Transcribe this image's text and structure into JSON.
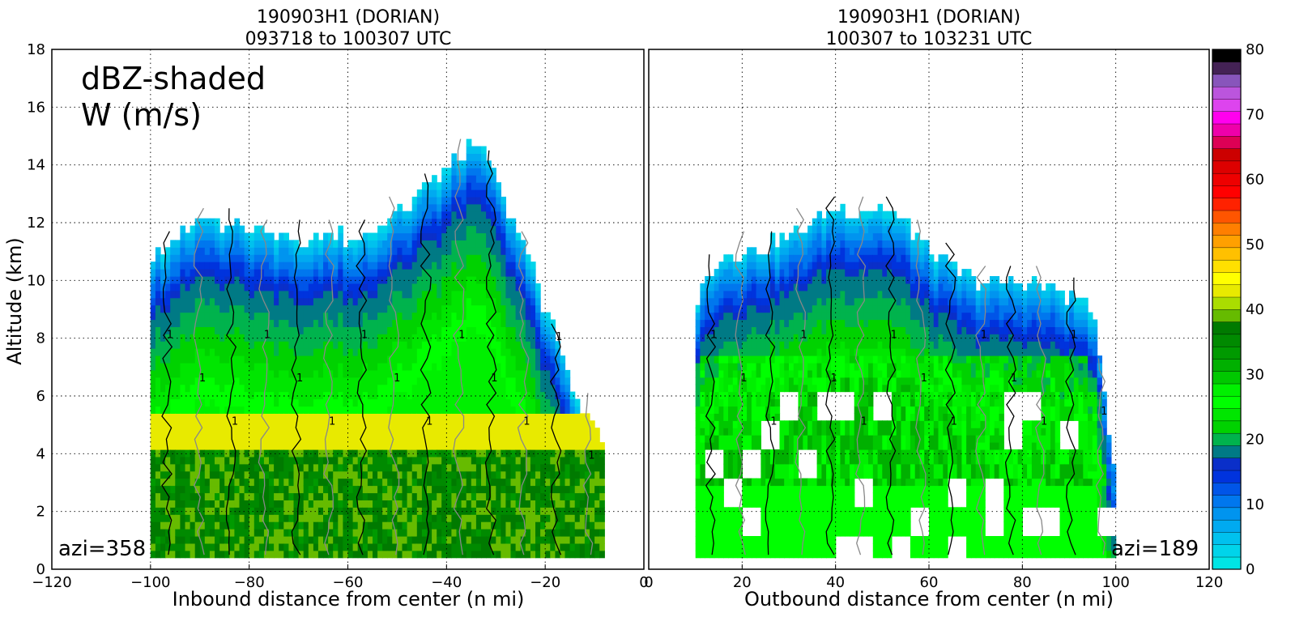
{
  "chart_data": [
    {
      "type": "heatmap",
      "title_line1": "190903H1 (DORIAN)",
      "title_line2": "093718 to 100307 UTC",
      "xlabel": "Inbound distance from center (n mi)",
      "ylabel": "Altitude (km)",
      "xlim": [
        -120,
        0
      ],
      "ylim": [
        0,
        18
      ],
      "xticks": [
        "−120",
        "−100",
        "−80",
        "−60",
        "−40",
        "−20",
        "0"
      ],
      "yticks": [
        "0",
        "2",
        "4",
        "6",
        "8",
        "10",
        "12",
        "14",
        "16",
        "18"
      ],
      "grid": true,
      "overlay_text": [
        "dBZ-shaded",
        "W (m/s)"
      ],
      "azimuth_label": "azi=358",
      "contour_label": "1",
      "reflectivity_profile": {
        "x": [
          -100,
          -95,
          -90,
          -85,
          -80,
          -75,
          -70,
          -65,
          -60,
          -55,
          -50,
          -45,
          -40,
          -35,
          -32,
          -30,
          -27,
          -24,
          -21,
          -18,
          -15,
          -12,
          -10,
          -8
        ],
        "echo_top_km": [
          10.8,
          11.5,
          12.0,
          12.0,
          11.8,
          11.5,
          11.5,
          11.5,
          11.5,
          11.5,
          12.3,
          13.0,
          13.8,
          14.8,
          14.5,
          13.5,
          12.2,
          11.0,
          9.5,
          8.0,
          6.5,
          5.5,
          5.0,
          4.5
        ],
        "melting_layer_km": 4.8,
        "peak_dbz": 42
      }
    },
    {
      "type": "heatmap",
      "title_line1": "190903H1 (DORIAN)",
      "title_line2": "100307 to 103231 UTC",
      "xlabel": "Outbound distance from center (n mi)",
      "ylabel": "",
      "xlim": [
        0,
        120
      ],
      "ylim": [
        0,
        18
      ],
      "xticks": [
        "0",
        "20",
        "40",
        "60",
        "80",
        "100",
        "120"
      ],
      "grid": true,
      "azimuth_label": "azi=189",
      "contour_label": "1",
      "reflectivity_profile": {
        "x": [
          10,
          12,
          15,
          20,
          25,
          30,
          35,
          40,
          45,
          50,
          55,
          60,
          65,
          70,
          75,
          80,
          85,
          90,
          95,
          100
        ],
        "echo_top_km": [
          9.0,
          10.0,
          10.8,
          11.0,
          11.2,
          11.5,
          12.0,
          12.5,
          12.4,
          12.5,
          12.0,
          11.0,
          10.5,
          10.0,
          10.0,
          10.0,
          9.8,
          9.5,
          9.0,
          3.0
        ],
        "peak_dbz": 38
      }
    }
  ],
  "colorbar": {
    "label_values": [
      "0",
      "10",
      "20",
      "30",
      "40",
      "50",
      "60",
      "70",
      "80"
    ],
    "min": 0,
    "max": 80,
    "colors": [
      "#00e5e5",
      "#00d4ea",
      "#00c1ee",
      "#00aaf0",
      "#0094ef",
      "#0077ee",
      "#0055e8",
      "#0033dd",
      "#0a2fc9",
      "#007a85",
      "#00b34d",
      "#00d200",
      "#00e600",
      "#00ff00",
      "#00f000",
      "#00c800",
      "#00b000",
      "#009a00",
      "#008a00",
      "#007a00",
      "#66bb00",
      "#aadd00",
      "#e8ea00",
      "#ffff00",
      "#ffe000",
      "#ffc000",
      "#ffa000",
      "#ff7f00",
      "#ff5500",
      "#ff2200",
      "#ff0000",
      "#ee0000",
      "#dd0000",
      "#cc0000",
      "#dd0055",
      "#ee00aa",
      "#ff00ee",
      "#dd44ee",
      "#bb55dd",
      "#8855bb",
      "#442255",
      "#000000"
    ]
  }
}
